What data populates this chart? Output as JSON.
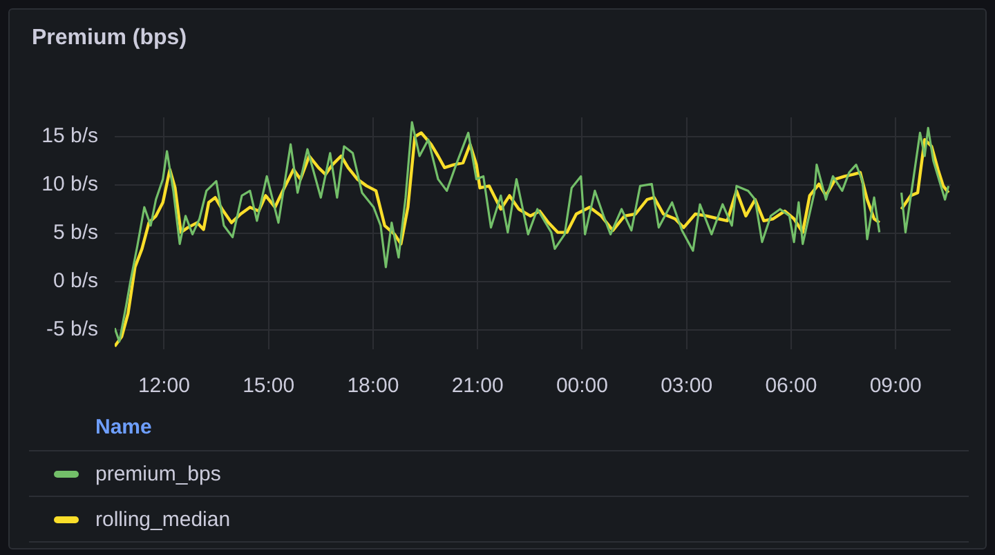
{
  "chart_data": {
    "type": "line",
    "title": "Premium (bps)",
    "legend_title": "Name",
    "legend": "bottom",
    "grid": true,
    "marker": "none",
    "line_style": "solid",
    "xlim": [
      "--01-01T10:35",
      "--01-02T10:35"
    ],
    "xticks": [
      {
        "value": "--01-01T12:00",
        "label": "12:00"
      },
      {
        "value": "--01-01T15:00",
        "label": "15:00"
      },
      {
        "value": "--01-01T18:00",
        "label": "18:00"
      },
      {
        "value": "--01-01T21:00",
        "label": "21:00"
      },
      {
        "value": "--01-02T00:00",
        "label": "00:00"
      },
      {
        "value": "--01-02T03:00",
        "label": "03:00"
      },
      {
        "value": "--01-02T06:00",
        "label": "06:00"
      },
      {
        "value": "--01-02T09:00",
        "label": "09:00"
      }
    ],
    "ylim": [
      -7,
      17
    ],
    "yticks": [
      {
        "value": -5,
        "label": "-5 b/s"
      },
      {
        "value": 0,
        "label": "0 b/s"
      },
      {
        "value": 5,
        "label": "5 b/s"
      },
      {
        "value": 10,
        "label": "10 b/s"
      },
      {
        "value": 15,
        "label": "15 b/s"
      }
    ],
    "series": [
      {
        "name": "premium_bps",
        "color": "#73bf69",
        "x": [
          "--01-01T10:35",
          "--01-01T10:43",
          "--01-01T10:55",
          "--01-01T11:02",
          "--01-01T11:14",
          "--01-01T11:26",
          "--01-01T11:37",
          "--01-01T11:46",
          "--01-01T11:58",
          "--01-01T12:05",
          "--01-01T12:16",
          "--01-01T12:27",
          "--01-01T12:37",
          "--01-01T12:49",
          "--01-01T13:01",
          "--01-01T13:13",
          "--01-01T13:30",
          "--01-01T13:43",
          "--01-01T13:58",
          "--01-01T14:14",
          "--01-01T14:28",
          "--01-01T14:40",
          "--01-01T14:57",
          "--01-01T15:17",
          "--01-01T15:38",
          "--01-01T15:50",
          "--01-01T16:07",
          "--01-01T16:30",
          "--01-01T16:46",
          "--01-01T16:58",
          "--01-01T17:10",
          "--01-01T17:25",
          "--01-01T17:41",
          "--01-01T18:01",
          "--01-01T18:13",
          "--01-01T18:22",
          "--01-01T18:32",
          "--01-01T18:44",
          "--01-01T18:56",
          "--01-01T19:07",
          "--01-01T19:20",
          "--01-01T19:35",
          "--01-01T19:52",
          "--01-01T20:07",
          "--01-01T20:23",
          "--01-01T20:44",
          "--01-01T20:58",
          "--01-01T21:10",
          "--01-01T21:23",
          "--01-01T21:40",
          "--01-01T21:52",
          "--01-01T22:07",
          "--01-01T22:27",
          "--01-01T22:43",
          "--01-01T23:07",
          "--01-01T23:13",
          "--01-01T23:30",
          "--01-01T23:42",
          "--01-01T23:58",
          "--01-02T00:05",
          "--01-02T00:22",
          "--01-02T00:37",
          "--01-02T00:49",
          "--01-02T01:08",
          "--01-02T01:25",
          "--01-02T01:40",
          "--01-02T02:00",
          "--01-02T02:12",
          "--01-02T02:35",
          "--01-02T02:52",
          "--01-02T03:11",
          "--01-02T03:23",
          "--01-02T03:43",
          "--01-02T04:02",
          "--01-02T04:18",
          "--01-02T04:26",
          "--01-02T04:46",
          "--01-02T04:58",
          "--01-02T05:10",
          "--01-02T05:25",
          "--01-02T05:41",
          "--01-02T05:57",
          "--01-02T06:05",
          "--01-02T06:13",
          "--01-02T06:20",
          "--01-02T06:40",
          "--01-02T06:44",
          "--01-02T07:00",
          "--01-02T07:12",
          "--01-02T07:28",
          "--01-02T07:40",
          "--01-02T07:52",
          "--01-02T08:03",
          "--01-02T08:11",
          "--01-02T08:23",
          "--01-02T08:32",
          "--01-02T08:51",
          "--01-02T09:10",
          "--01-02T09:17",
          "--01-02T09:30",
          "--01-02T09:42",
          "--01-02T09:50",
          "--01-02T09:56",
          "--01-02T10:05",
          "--01-02T10:17",
          "--01-02T10:25",
          "--01-02T10:31"
        ],
        "values": [
          -4.8,
          -6.2,
          -2.4,
          0,
          3.7,
          7.7,
          5.8,
          8.5,
          10.6,
          13.5,
          9.4,
          3.9,
          6.8,
          4.9,
          6.5,
          9.4,
          10.4,
          5.8,
          4.6,
          8.9,
          9.4,
          6.3,
          10.9,
          6.1,
          14.2,
          9.2,
          13.7,
          8.7,
          13.3,
          8.7,
          14.0,
          13.3,
          9.2,
          7.7,
          5.8,
          1.5,
          6.1,
          2.5,
          8.7,
          16.5,
          13.0,
          14.7,
          10.6,
          9.4,
          12.1,
          15.4,
          10.6,
          10.9,
          5.6,
          8.9,
          5.1,
          10.6,
          4.9,
          7.5,
          5.1,
          3.4,
          4.9,
          9.7,
          10.9,
          4.9,
          9.4,
          6.8,
          4.9,
          7.5,
          5.3,
          9.9,
          10.1,
          5.6,
          8.2,
          5.3,
          3.2,
          8.0,
          4.9,
          8.0,
          5.8,
          9.9,
          9.4,
          8.5,
          4.1,
          6.8,
          7.5,
          6.8,
          4.1,
          8.2,
          3.9,
          9.2,
          12.1,
          8.5,
          10.9,
          9.4,
          11.3,
          12.1,
          10.4,
          4.4,
          8.7,
          5.1,
          null,
          9.2,
          5.1,
          10.4,
          15.4,
          13.0,
          15.9,
          12.5,
          10.1,
          8.5,
          9.9
        ]
      },
      {
        "name": "rolling_median",
        "color": "#fade2a",
        "x": [
          "--01-01T10:35",
          "--01-01T10:47",
          "--01-01T10:58",
          "--01-01T11:10",
          "--01-01T11:22",
          "--01-01T11:34",
          "--01-01T11:46",
          "--01-01T11:58",
          "--01-01T12:10",
          "--01-01T12:19",
          "--01-01T12:29",
          "--01-01T12:41",
          "--01-01T12:57",
          "--01-01T13:08",
          "--01-01T13:17",
          "--01-01T13:28",
          "--01-01T13:40",
          "--01-01T13:56",
          "--01-01T14:12",
          "--01-01T14:28",
          "--01-01T14:43",
          "--01-01T14:55",
          "--01-01T15:11",
          "--01-01T15:27",
          "--01-01T15:43",
          "--01-01T15:55",
          "--01-01T16:10",
          "--01-01T16:26",
          "--01-01T16:38",
          "--01-01T16:50",
          "--01-01T17:05",
          "--01-01T17:17",
          "--01-01T17:33",
          "--01-01T17:49",
          "--01-01T18:05",
          "--01-01T18:20",
          "--01-01T18:37",
          "--01-01T18:48",
          "--01-01T19:00",
          "--01-01T19:12",
          "--01-01T19:23",
          "--01-01T19:40",
          "--01-01T19:52",
          "--01-01T20:03",
          "--01-01T20:19",
          "--01-01T20:35",
          "--01-01T20:47",
          "--01-01T20:58",
          "--01-01T21:04",
          "--01-01T21:20",
          "--01-01T21:40",
          "--01-01T21:55",
          "--01-01T22:11",
          "--01-01T22:31",
          "--01-01T22:47",
          "--01-01T23:02",
          "--01-01T23:18",
          "--01-01T23:34",
          "--01-01T23:50",
          "--01-02T00:13",
          "--01-02T00:33",
          "--01-02T00:53",
          "--01-02T01:13",
          "--01-02T01:32",
          "--01-02T01:52",
          "--01-02T02:04",
          "--01-02T02:20",
          "--01-02T02:40",
          "--01-02T02:55",
          "--01-02T03:15",
          "--01-02T03:35",
          "--01-02T03:55",
          "--01-02T04:10",
          "--01-02T04:26",
          "--01-02T04:42",
          "--01-02T04:58",
          "--01-02T05:13",
          "--01-02T05:29",
          "--01-02T05:49",
          "--01-02T06:05",
          "--01-02T06:20",
          "--01-02T06:32",
          "--01-02T06:48",
          "--01-02T07:00",
          "--01-02T07:16",
          "--01-02T07:32",
          "--01-02T07:47",
          "--01-02T07:59",
          "--01-02T08:11",
          "--01-02T08:23",
          "--01-02T08:32",
          "--01-02T08:51",
          "--01-02T09:10",
          "--01-02T09:26",
          "--01-02T09:38",
          "--01-02T09:50",
          "--01-02T10:02",
          "--01-02T10:13",
          "--01-02T10:22",
          "--01-02T10:31"
        ],
        "values": [
          -6.7,
          -5.7,
          -3.3,
          1.5,
          3.4,
          6.1,
          6.8,
          8.2,
          11.6,
          9.7,
          5.1,
          5.6,
          6.1,
          5.4,
          8.2,
          8.7,
          7.5,
          6.1,
          7.0,
          7.7,
          7.3,
          8.9,
          7.7,
          9.7,
          11.6,
          10.6,
          13.0,
          11.8,
          11.1,
          12.1,
          13.0,
          11.8,
          10.6,
          9.9,
          9.4,
          5.8,
          4.9,
          3.9,
          7.7,
          15.0,
          15.4,
          14.2,
          13.0,
          11.8,
          12.1,
          12.3,
          14.2,
          12.1,
          9.7,
          9.9,
          7.5,
          8.9,
          7.5,
          6.8,
          7.3,
          6.1,
          5.1,
          5.1,
          7.0,
          7.7,
          6.8,
          5.3,
          6.8,
          7.0,
          8.5,
          8.7,
          7.0,
          6.5,
          5.6,
          7.0,
          6.8,
          6.5,
          6.3,
          9.4,
          6.8,
          8.5,
          6.3,
          6.5,
          7.3,
          6.5,
          5.1,
          8.9,
          10.1,
          8.9,
          10.6,
          10.9,
          11.1,
          11.3,
          8.5,
          6.5,
          6.1,
          null,
          7.5,
          8.9,
          9.2,
          14.7,
          14.0,
          11.6,
          9.9,
          9.2
        ]
      }
    ]
  }
}
